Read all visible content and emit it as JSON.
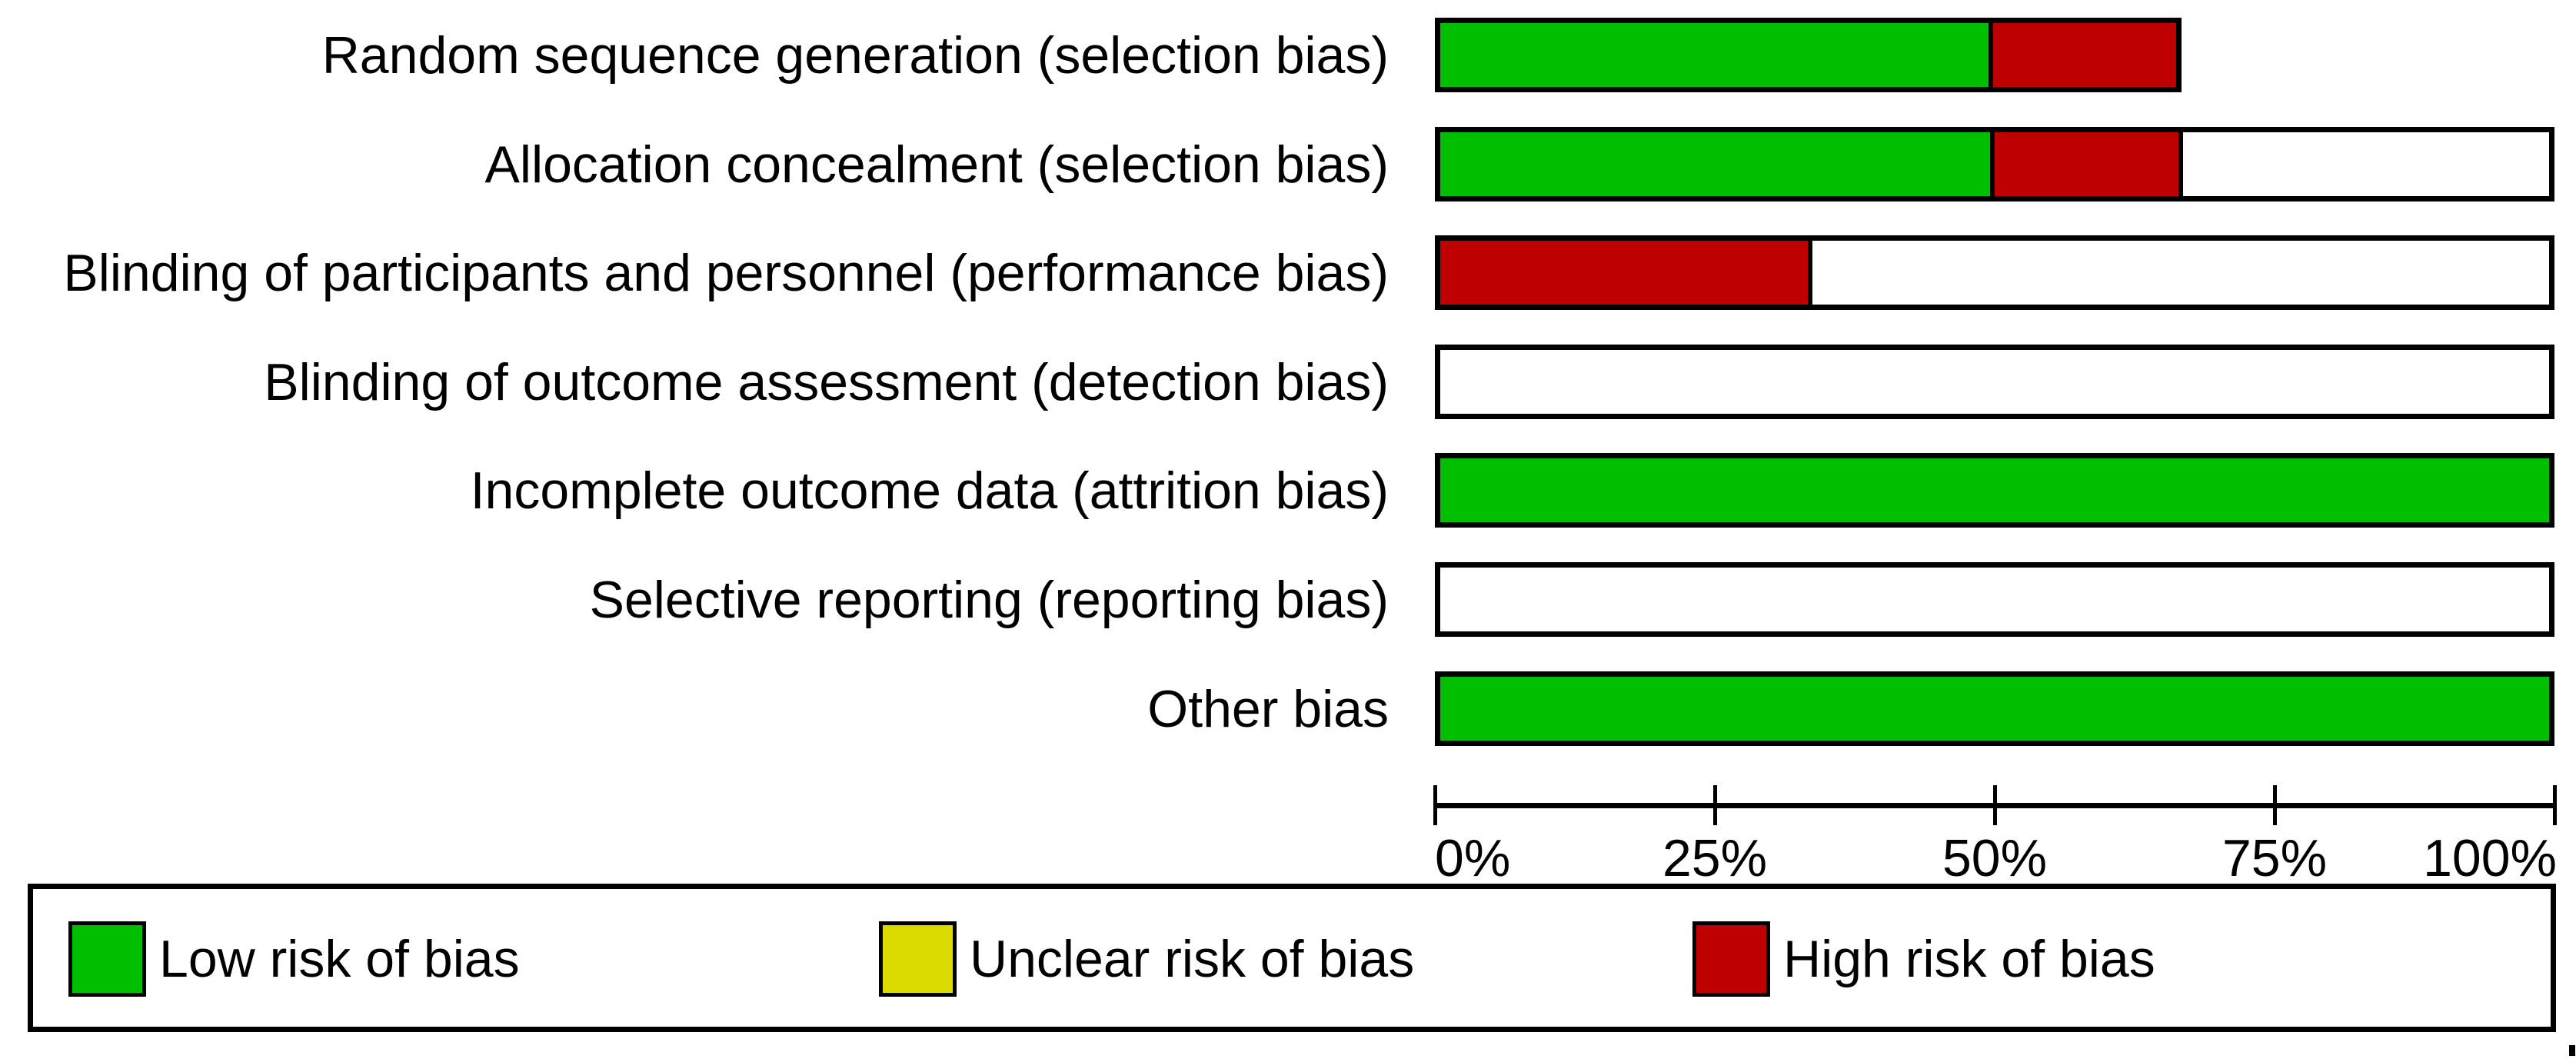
{
  "chart_data": {
    "type": "bar",
    "orientation": "horizontal-stacked",
    "title": "",
    "xlabel": "",
    "ylabel": "",
    "categories": [
      "Random sequence generation (selection bias)",
      "Allocation concealment (selection bias)",
      "Blinding of participants and personnel (performance bias)",
      "Blinding of outcome assessment (detection bias)",
      "Incomplete outcome data (attrition bias)",
      "Selective reporting (reporting bias)",
      "Other bias"
    ],
    "rows": [
      {
        "label": "Random sequence generation (selection bias)",
        "segments": [
          {
            "key": "low",
            "pct": 50
          },
          {
            "key": "high",
            "pct": 16.7
          }
        ],
        "bar_total_pct": 66.7
      },
      {
        "label": "Allocation concealment (selection bias)",
        "segments": [
          {
            "key": "low",
            "pct": 50
          },
          {
            "key": "high",
            "pct": 16.7
          },
          {
            "key": "blank",
            "pct": 33.3
          }
        ],
        "bar_total_pct": 100
      },
      {
        "label": "Blinding of participants and personnel (performance bias)",
        "segments": [
          {
            "key": "high",
            "pct": 33.3
          },
          {
            "key": "blank",
            "pct": 66.7
          }
        ],
        "bar_total_pct": 100
      },
      {
        "label": "Blinding of outcome assessment (detection bias)",
        "segments": [
          {
            "key": "blank",
            "pct": 100
          }
        ],
        "bar_total_pct": 100
      },
      {
        "label": "Incomplete outcome data (attrition bias)",
        "segments": [
          {
            "key": "low",
            "pct": 100
          }
        ],
        "bar_total_pct": 100
      },
      {
        "label": "Selective reporting (reporting bias)",
        "segments": [
          {
            "key": "blank",
            "pct": 100
          }
        ],
        "bar_total_pct": 100
      },
      {
        "label": "Other bias",
        "segments": [
          {
            "key": "low",
            "pct": 100
          }
        ],
        "bar_total_pct": 100
      }
    ],
    "series": [
      {
        "name": "Low risk of bias",
        "key": "low",
        "color": "#00BE00",
        "values": [
          50,
          50,
          0,
          0,
          100,
          0,
          100
        ]
      },
      {
        "name": "Unclear risk of bias",
        "key": "unclear",
        "color": "#DBDB00",
        "values": [
          0,
          0,
          0,
          0,
          0,
          0,
          0
        ]
      },
      {
        "name": "High risk of bias",
        "key": "high",
        "color": "#BF0000",
        "values": [
          16.7,
          16.7,
          33.3,
          0,
          0,
          0,
          0
        ]
      },
      {
        "name": "(blank)",
        "key": "blank",
        "color": "#FFFFFF",
        "values": [
          0,
          33.3,
          66.7,
          100,
          0,
          100,
          0
        ]
      }
    ],
    "axis": {
      "ticks": [
        "0%",
        "25%",
        "50%",
        "75%",
        "100%"
      ],
      "tick_values": [
        0,
        25,
        50,
        75,
        100
      ],
      "xlim": [
        0,
        100
      ],
      "grid": false
    },
    "legend": {
      "position": "bottom",
      "entries": [
        {
          "label": "Low risk of bias",
          "key": "low",
          "color": "#00BE00"
        },
        {
          "label": "Unclear risk of bias",
          "key": "unclear",
          "color": "#DBDB00"
        },
        {
          "label": "High risk of bias",
          "key": "high",
          "color": "#BF0000"
        }
      ]
    },
    "colors": {
      "low": "#00BE00",
      "unclear": "#DBDB00",
      "high": "#BF0000",
      "blank": "#FFFFFF",
      "border": "#000000"
    }
  }
}
